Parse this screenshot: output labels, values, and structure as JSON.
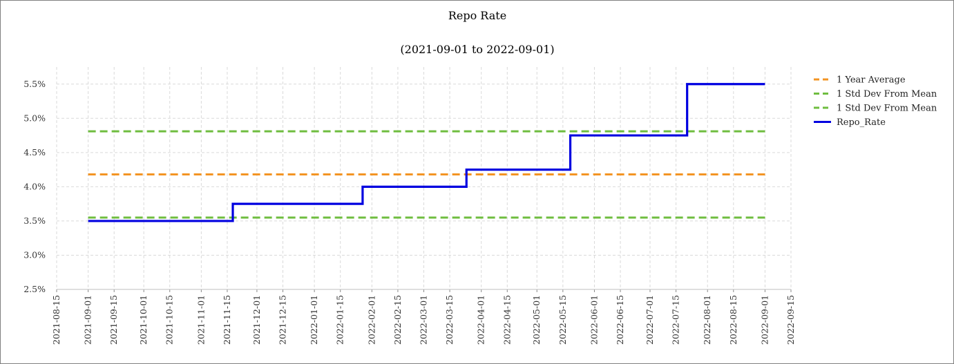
{
  "chart_data": {
    "type": "line",
    "title": "Repo Rate",
    "subtitle": "(2021-09-01 to 2022-09-01)",
    "xlabel": "",
    "ylabel": "",
    "x_range": [
      "2021-08-15",
      "2022-09-15"
    ],
    "ylim": [
      2.5,
      5.75
    ],
    "y_ticks": [
      {
        "value": 2.5,
        "label": "2.5%"
      },
      {
        "value": 3.0,
        "label": "3.0%"
      },
      {
        "value": 3.5,
        "label": "3.5%"
      },
      {
        "value": 4.0,
        "label": "4.0%"
      },
      {
        "value": 4.5,
        "label": "4.5%"
      },
      {
        "value": 5.0,
        "label": "5.0%"
      },
      {
        "value": 5.5,
        "label": "5.5%"
      }
    ],
    "x_ticks": [
      "2021-08-15",
      "2021-09-01",
      "2021-09-15",
      "2021-10-01",
      "2021-10-15",
      "2021-11-01",
      "2021-11-15",
      "2021-12-01",
      "2021-12-15",
      "2022-01-01",
      "2022-01-15",
      "2022-02-01",
      "2022-02-15",
      "2022-03-01",
      "2022-03-15",
      "2022-04-01",
      "2022-04-15",
      "2022-05-01",
      "2022-05-15",
      "2022-06-01",
      "2022-06-15",
      "2022-07-01",
      "2022-07-15",
      "2022-08-01",
      "2022-08-15",
      "2022-09-01",
      "2022-09-15"
    ],
    "grid": true,
    "legend_position": "right",
    "series": [
      {
        "name": "1 Year Average",
        "kind": "hline",
        "style": "dashed",
        "color": "#f39423",
        "value": 4.18
      },
      {
        "name": "1 Std Dev From Mean",
        "kind": "hline",
        "style": "dashed",
        "color": "#6fbd3f",
        "value": 4.81
      },
      {
        "name": "1 Std Dev From Mean",
        "kind": "hline",
        "style": "dashed",
        "color": "#6fbd3f",
        "value": 3.55
      },
      {
        "name": "Repo_Rate",
        "kind": "step",
        "style": "solid",
        "color": "#0000e0",
        "points": [
          {
            "x": "2021-09-01",
            "y": 3.5
          },
          {
            "x": "2021-11-18",
            "y": 3.75
          },
          {
            "x": "2022-01-27",
            "y": 4.0
          },
          {
            "x": "2022-03-24",
            "y": 4.25
          },
          {
            "x": "2022-05-19",
            "y": 4.75
          },
          {
            "x": "2022-07-21",
            "y": 5.5
          },
          {
            "x": "2022-09-01",
            "y": 5.5
          }
        ]
      }
    ]
  }
}
